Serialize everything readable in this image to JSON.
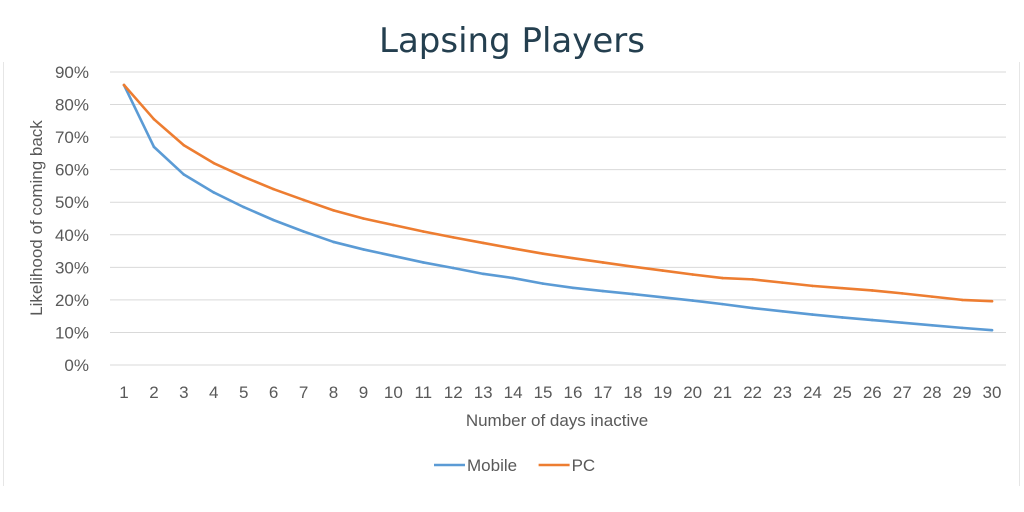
{
  "chart_data": {
    "type": "line",
    "title": "Lapsing Players",
    "xlabel": "Number of days inactive",
    "ylabel": "Likelihood of coming back",
    "x": [
      1,
      2,
      3,
      4,
      5,
      6,
      7,
      8,
      9,
      10,
      11,
      12,
      13,
      14,
      15,
      16,
      17,
      18,
      19,
      20,
      21,
      22,
      23,
      24,
      25,
      26,
      27,
      28,
      29,
      30
    ],
    "y_ticks": [
      "0%",
      "10%",
      "20%",
      "30%",
      "40%",
      "50%",
      "60%",
      "70%",
      "80%",
      "90%"
    ],
    "ylim": [
      0,
      90
    ],
    "grid": "horizontal",
    "legend_position": "bottom",
    "series": [
      {
        "name": "Mobile",
        "color": "#5b9bd5",
        "values": [
          86,
          67,
          58.5,
          53,
          48.5,
          44.5,
          41,
          37.8,
          35.5,
          33.5,
          31.5,
          29.8,
          28,
          26.7,
          25,
          23.7,
          22.7,
          21.8,
          20.8,
          19.8,
          18.7,
          17.5,
          16.5,
          15.5,
          14.6,
          13.8,
          13,
          12.2,
          11.4,
          10.7
        ]
      },
      {
        "name": "PC",
        "color": "#ed7d31",
        "values": [
          86,
          75.5,
          67.5,
          62,
          57.8,
          54,
          50.7,
          47.5,
          45,
          43,
          41,
          39.2,
          37.5,
          35.8,
          34.2,
          32.8,
          31.5,
          30.2,
          29,
          27.8,
          26.7,
          26.3,
          25.3,
          24.3,
          23.6,
          22.9,
          22,
          21,
          20,
          19.6
        ]
      }
    ]
  }
}
